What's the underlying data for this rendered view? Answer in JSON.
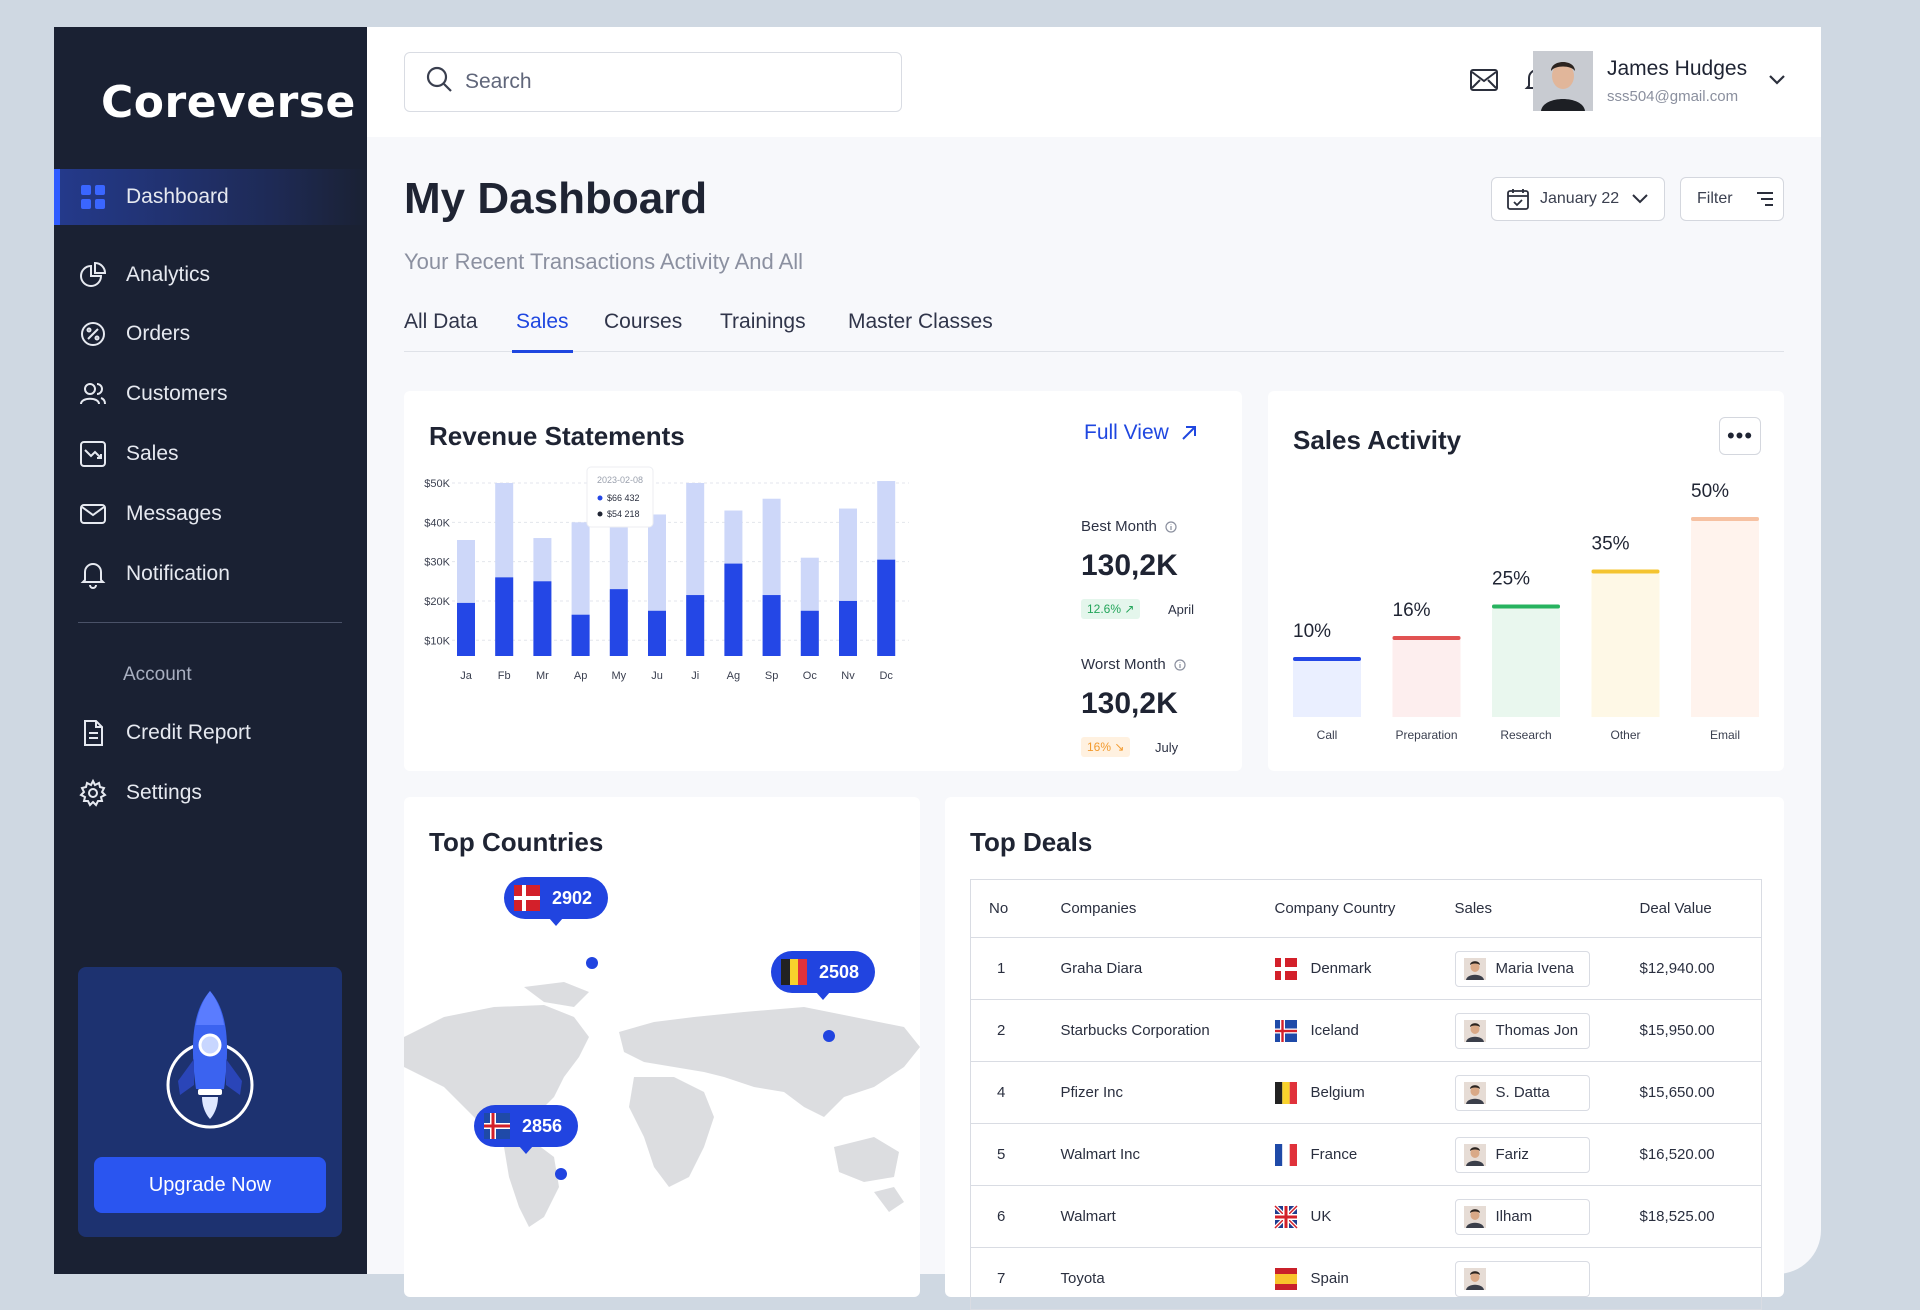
{
  "app": {
    "logo": "Coreverse"
  },
  "sidebar": {
    "items": [
      {
        "label": "Dashboard",
        "icon": "grid-icon",
        "active": true
      },
      {
        "label": "Analytics",
        "icon": "pie-chart-icon"
      },
      {
        "label": "Orders",
        "icon": "percent-badge-icon"
      },
      {
        "label": "Customers",
        "icon": "users-icon"
      },
      {
        "label": "Sales",
        "icon": "trend-box-icon"
      },
      {
        "label": "Messages",
        "icon": "mail-icon"
      },
      {
        "label": "Notification",
        "icon": "bell-icon"
      }
    ],
    "account_label": "Account",
    "account_items": [
      {
        "label": "Credit Report",
        "icon": "document-icon"
      },
      {
        "label": "Settings",
        "icon": "gear-icon"
      }
    ],
    "upgrade_label": "Upgrade Now"
  },
  "topbar": {
    "search_placeholder": "Search",
    "user_name": "James Hudges",
    "user_email": "sss504@gmail.com"
  },
  "header": {
    "title": "My Dashboard",
    "subtitle": "Your Recent Transactions Activity And All",
    "date_label": "January 22",
    "filter_label": "Filter"
  },
  "tabs": [
    "All Data",
    "Sales",
    "Courses",
    "Trainings",
    "Master Classes"
  ],
  "revenue": {
    "title": "Revenue Statements",
    "full_view": "Full View",
    "best_label": "Best Month",
    "best_value": "130,2K",
    "best_change": "12.6% ↗",
    "best_month": "April",
    "worst_label": "Worst Month",
    "worst_value": "130,2K",
    "worst_change": "16% ↘",
    "worst_month": "July",
    "tooltip_date": "2023-02-08",
    "tooltip_a": "$66 432",
    "tooltip_b": "$54 218"
  },
  "chart_data": [
    {
      "type": "bar",
      "title": "Revenue Statements",
      "categories": [
        "Ja",
        "Fb",
        "Mr",
        "Ap",
        "My",
        "Ju",
        "Ji",
        "Ag",
        "Sp",
        "Oc",
        "Nv",
        "Dc"
      ],
      "y_ticks": [
        "$10K",
        "$20K",
        "$30K",
        "$40K",
        "$50K"
      ],
      "ylim": [
        6,
        50
      ],
      "series": [
        {
          "values": [
            35.5,
            50,
            36,
            40,
            44,
            42,
            50,
            43,
            46,
            31,
            43.5,
            50.5
          ],
          "color": "#cdd7f9"
        },
        {
          "values": [
            19.5,
            26,
            25,
            16.5,
            23,
            17.5,
            21.5,
            29.5,
            21.5,
            17.5,
            20,
            30.5
          ],
          "color": "#2447e6"
        }
      ]
    },
    {
      "type": "bar",
      "title": "Sales Activity",
      "categories": [
        "Call",
        "Preparation",
        "Research",
        "Other",
        "Email"
      ],
      "values": [
        10,
        16,
        25,
        35,
        50
      ],
      "labels": [
        "10%",
        "16%",
        "25%",
        "35%",
        "50%"
      ],
      "colors": [
        "#2447e6",
        "#e15252",
        "#27b35f",
        "#f4c430",
        "#f6c1a2"
      ],
      "fills": [
        "#eaefff",
        "#fdeeee",
        "#e9f7ee",
        "#fef8e6",
        "#fff3ed"
      ]
    }
  ],
  "sales_activity": {
    "title": "Sales Activity",
    "menu": "•••"
  },
  "countries": {
    "title": "Top Countries",
    "pins": [
      {
        "value": "2902",
        "flag": "denmark"
      },
      {
        "value": "2508",
        "flag": "belgium"
      },
      {
        "value": "2856",
        "flag": "iceland"
      }
    ]
  },
  "deals": {
    "title": "Top Deals",
    "columns": [
      "No",
      "Companies",
      "Company Country",
      "Sales",
      "Deal Value"
    ],
    "rows": [
      {
        "no": "1",
        "company": "Graha Diara",
        "country": "Denmark",
        "flag": "denmark",
        "sales": "Maria Ivena",
        "value": "$12,940.00"
      },
      {
        "no": "2",
        "company": "Starbucks Corporation",
        "country": "Iceland",
        "flag": "iceland",
        "sales": "Thomas Jon",
        "value": "$15,950.00"
      },
      {
        "no": "4",
        "company": "Pfizer Inc",
        "country": "Belgium",
        "flag": "belgium",
        "sales": "S. Datta",
        "value": "$15,650.00"
      },
      {
        "no": "5",
        "company": "Walmart Inc",
        "country": "France",
        "flag": "france",
        "sales": "Fariz",
        "value": "$16,520.00"
      },
      {
        "no": "6",
        "company": "Walmart",
        "country": "UK",
        "flag": "uk",
        "sales": "Ilham",
        "value": "$18,525.00"
      },
      {
        "no": "7",
        "company": "Toyota",
        "country": "Spain",
        "flag": "spain",
        "sales": "",
        "value": ""
      }
    ]
  }
}
